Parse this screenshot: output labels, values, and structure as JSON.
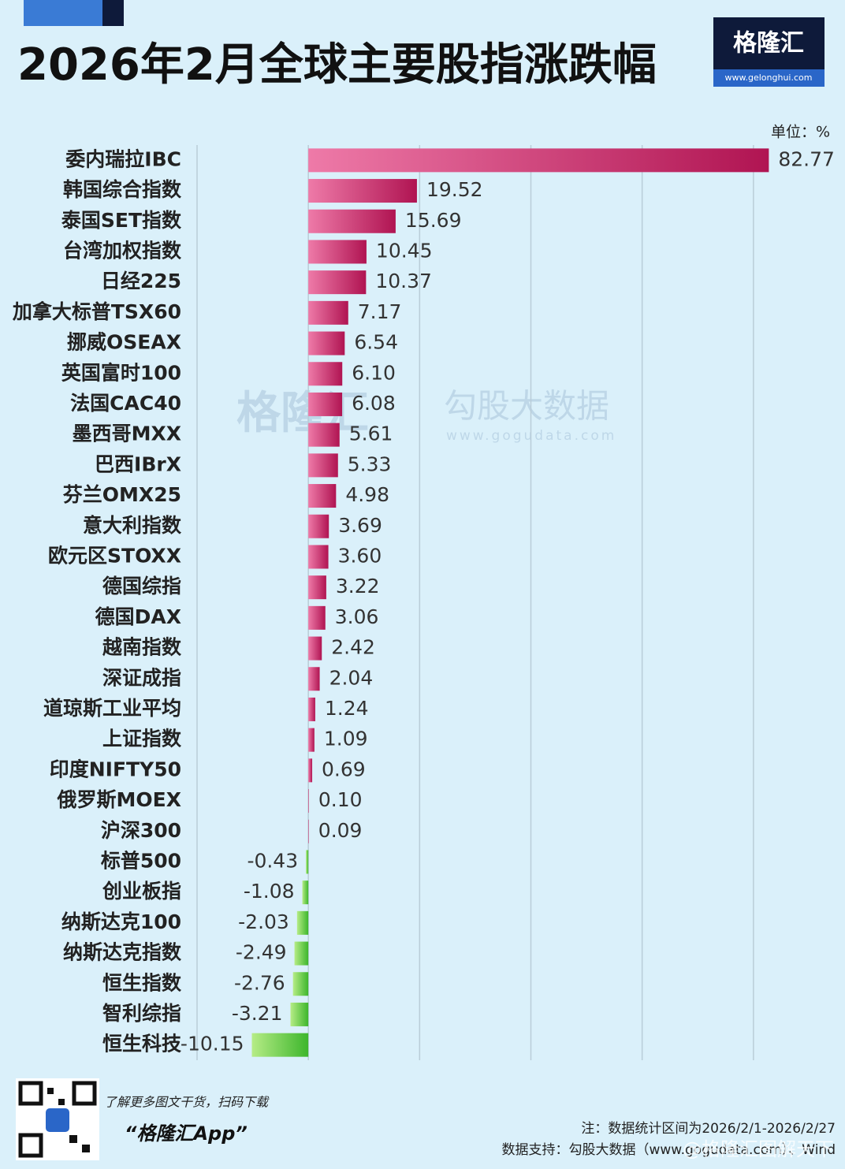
{
  "header": {
    "title": "2026年2月全球主要股指涨跌幅",
    "logo_text": "格隆汇",
    "logo_url": "www.gelonghui.com"
  },
  "chart_data": {
    "type": "bar",
    "orientation": "horizontal",
    "unit_label": "单位：%",
    "categories": [
      "委内瑞拉IBC",
      "韩国综合指数",
      "泰国SET指数",
      "台湾加权指数",
      "日经225",
      "加拿大标普TSX60",
      "挪威OSEAX",
      "英国富时100",
      "法国CAC40",
      "墨西哥MXX",
      "巴西IBrX",
      "芬兰OMX25",
      "意大利指数",
      "欧元区STOXX",
      "德国综指",
      "德国DAX",
      "越南指数",
      "深证成指",
      "道琼斯工业平均",
      "上证指数",
      "印度NIFTY50",
      "俄罗斯MOEX",
      "沪深300",
      "标普500",
      "创业板指",
      "纳斯达克100",
      "纳斯达克指数",
      "恒生指数",
      "智利综指",
      "恒生科技"
    ],
    "values": [
      82.77,
      19.52,
      15.69,
      10.45,
      10.37,
      7.17,
      6.54,
      6.1,
      6.08,
      5.61,
      5.33,
      4.98,
      3.69,
      3.6,
      3.22,
      3.06,
      2.42,
      2.04,
      1.24,
      1.09,
      0.69,
      0.1,
      0.09,
      -0.43,
      -1.08,
      -2.03,
      -2.49,
      -2.76,
      -3.21,
      -10.15
    ],
    "value_labels": [
      "82.77",
      "19.52",
      "15.69",
      "10.45",
      "10.37",
      "7.17",
      "6.54",
      "6.10",
      "6.08",
      "5.61",
      "5.33",
      "4.98",
      "3.69",
      "3.60",
      "3.22",
      "3.06",
      "2.42",
      "2.04",
      "1.24",
      "1.09",
      "0.69",
      "0.10",
      "0.09",
      "-0.43",
      "-1.08",
      "-2.03",
      "-2.49",
      "-2.76",
      "-3.21",
      "-10.15"
    ],
    "xlim": [
      -20,
      83
    ],
    "xticks": [
      -20,
      0,
      20,
      40,
      60,
      80
    ],
    "grid": true,
    "colors": {
      "positive": "#b01452",
      "negative": "#3db62c"
    },
    "watermarks": {
      "brand": "格隆汇",
      "source": "勾股大数据",
      "source_url": "www.gogudata.com"
    }
  },
  "footer": {
    "promo": "了解更多图文干货，扫码下载",
    "app": "“格隆汇App”",
    "note": "注：数据统计区间为2026/2/1-2026/2/27",
    "source": "数据支持：勾股大数据（www.gogudata.com）、Wind",
    "credit": "@格隆汇图解天下"
  }
}
